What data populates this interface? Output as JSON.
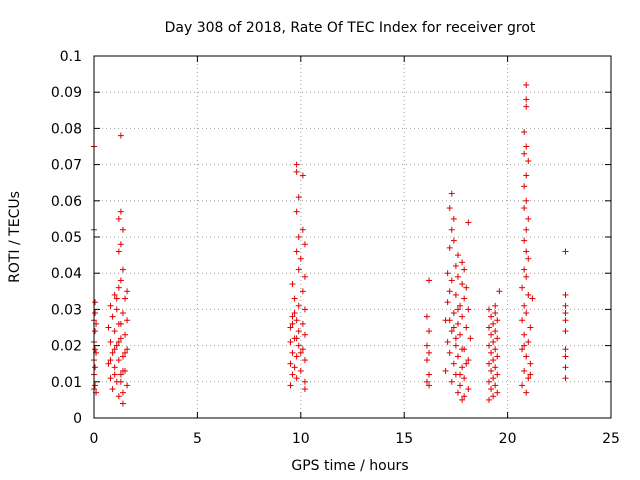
{
  "chart_data": {
    "type": "scatter",
    "title": "Day 308 of 2018, Rate Of TEC Index for receiver grot",
    "xlabel": "GPS time / hours",
    "ylabel": "ROTI / TECUs",
    "xlim": [
      0,
      25
    ],
    "ylim": [
      0,
      0.1
    ],
    "xticks": [
      "0",
      "5",
      "10",
      "15",
      "20",
      "25"
    ],
    "yticks": [
      "0",
      "0.01",
      "0.02",
      "0.03",
      "0.04",
      "0.05",
      "0.06",
      "0.07",
      "0.08",
      "0.09",
      "0.1"
    ],
    "grid": true,
    "marker": "+",
    "color": "#e00000",
    "points": [
      [
        0.0,
        0.075
      ],
      [
        0.0,
        0.052
      ],
      [
        0.05,
        0.032
      ],
      [
        0.05,
        0.029
      ],
      [
        0.0,
        0.027
      ],
      [
        0.05,
        0.024
      ],
      [
        0.0,
        0.021
      ],
      [
        0.05,
        0.019
      ],
      [
        0.0,
        0.016
      ],
      [
        0.05,
        0.014
      ],
      [
        0.0,
        0.012
      ],
      [
        0.05,
        0.009
      ],
      [
        0.0,
        0.008
      ],
      [
        0.1,
        0.007
      ],
      [
        0.1,
        0.018
      ],
      [
        0.1,
        0.026
      ],
      [
        1.3,
        0.078
      ],
      [
        1.3,
        0.057
      ],
      [
        1.2,
        0.055
      ],
      [
        1.4,
        0.052
      ],
      [
        1.3,
        0.048
      ],
      [
        1.2,
        0.046
      ],
      [
        1.4,
        0.041
      ],
      [
        1.3,
        0.038
      ],
      [
        1.2,
        0.036
      ],
      [
        1.0,
        0.034
      ],
      [
        1.5,
        0.033
      ],
      [
        0.8,
        0.031
      ],
      [
        1.1,
        0.03
      ],
      [
        1.4,
        0.029
      ],
      [
        0.9,
        0.028
      ],
      [
        1.6,
        0.027
      ],
      [
        1.2,
        0.026
      ],
      [
        0.7,
        0.025
      ],
      [
        1.0,
        0.024
      ],
      [
        1.5,
        0.023
      ],
      [
        1.3,
        0.022
      ],
      [
        0.8,
        0.021
      ],
      [
        1.1,
        0.02
      ],
      [
        1.6,
        0.019
      ],
      [
        0.9,
        0.018
      ],
      [
        1.4,
        0.017
      ],
      [
        1.2,
        0.016
      ],
      [
        0.7,
        0.015
      ],
      [
        1.0,
        0.014
      ],
      [
        1.5,
        0.013
      ],
      [
        1.3,
        0.012
      ],
      [
        0.8,
        0.011
      ],
      [
        1.1,
        0.01
      ],
      [
        1.6,
        0.009
      ],
      [
        0.9,
        0.008
      ],
      [
        1.4,
        0.007
      ],
      [
        1.2,
        0.006
      ],
      [
        1.4,
        0.004
      ],
      [
        1.0,
        0.012
      ],
      [
        1.5,
        0.018
      ],
      [
        1.2,
        0.021
      ],
      [
        0.8,
        0.016
      ],
      [
        1.3,
        0.026
      ],
      [
        1.1,
        0.033
      ],
      [
        1.6,
        0.035
      ],
      [
        1.4,
        0.013
      ],
      [
        1.0,
        0.019
      ],
      [
        1.3,
        0.01
      ],
      [
        9.8,
        0.07
      ],
      [
        9.8,
        0.068
      ],
      [
        10.1,
        0.067
      ],
      [
        9.9,
        0.061
      ],
      [
        9.8,
        0.057
      ],
      [
        10.1,
        0.052
      ],
      [
        9.9,
        0.05
      ],
      [
        10.2,
        0.048
      ],
      [
        9.8,
        0.046
      ],
      [
        10.0,
        0.044
      ],
      [
        9.9,
        0.041
      ],
      [
        10.2,
        0.039
      ],
      [
        9.6,
        0.037
      ],
      [
        10.1,
        0.035
      ],
      [
        9.7,
        0.033
      ],
      [
        9.9,
        0.031
      ],
      [
        10.2,
        0.03
      ],
      [
        9.6,
        0.028
      ],
      [
        9.8,
        0.027
      ],
      [
        10.1,
        0.026
      ],
      [
        9.5,
        0.025
      ],
      [
        9.9,
        0.024
      ],
      [
        10.2,
        0.023
      ],
      [
        9.7,
        0.022
      ],
      [
        9.5,
        0.021
      ],
      [
        9.9,
        0.02
      ],
      [
        10.1,
        0.019
      ],
      [
        9.6,
        0.018
      ],
      [
        9.8,
        0.017
      ],
      [
        10.2,
        0.016
      ],
      [
        9.5,
        0.015
      ],
      [
        9.7,
        0.014
      ],
      [
        10.0,
        0.013
      ],
      [
        9.6,
        0.012
      ],
      [
        9.8,
        0.011
      ],
      [
        10.2,
        0.01
      ],
      [
        9.5,
        0.009
      ],
      [
        10.2,
        0.008
      ],
      [
        9.8,
        0.022
      ],
      [
        9.6,
        0.026
      ],
      [
        10.0,
        0.018
      ],
      [
        9.7,
        0.029
      ],
      [
        16.2,
        0.038
      ],
      [
        16.1,
        0.028
      ],
      [
        16.2,
        0.024
      ],
      [
        16.1,
        0.02
      ],
      [
        16.2,
        0.018
      ],
      [
        16.1,
        0.016
      ],
      [
        16.2,
        0.012
      ],
      [
        16.1,
        0.01
      ],
      [
        16.2,
        0.009
      ],
      [
        17.3,
        0.062
      ],
      [
        17.2,
        0.058
      ],
      [
        17.4,
        0.055
      ],
      [
        18.1,
        0.054
      ],
      [
        17.3,
        0.052
      ],
      [
        17.4,
        0.049
      ],
      [
        17.2,
        0.047
      ],
      [
        17.6,
        0.045
      ],
      [
        17.8,
        0.043
      ],
      [
        17.5,
        0.042
      ],
      [
        17.9,
        0.041
      ],
      [
        17.1,
        0.04
      ],
      [
        17.6,
        0.039
      ],
      [
        17.3,
        0.038
      ],
      [
        17.8,
        0.037
      ],
      [
        18.0,
        0.036
      ],
      [
        17.2,
        0.035
      ],
      [
        17.5,
        0.034
      ],
      [
        17.9,
        0.033
      ],
      [
        17.1,
        0.032
      ],
      [
        17.7,
        0.031
      ],
      [
        18.1,
        0.03
      ],
      [
        17.4,
        0.029
      ],
      [
        17.8,
        0.028
      ],
      [
        17.0,
        0.027
      ],
      [
        17.6,
        0.026
      ],
      [
        18.0,
        0.025
      ],
      [
        17.3,
        0.024
      ],
      [
        17.7,
        0.023
      ],
      [
        18.2,
        0.022
      ],
      [
        17.1,
        0.021
      ],
      [
        17.5,
        0.02
      ],
      [
        17.9,
        0.019
      ],
      [
        17.2,
        0.018
      ],
      [
        17.6,
        0.017
      ],
      [
        18.1,
        0.016
      ],
      [
        17.4,
        0.015
      ],
      [
        17.8,
        0.014
      ],
      [
        17.0,
        0.013
      ],
      [
        17.5,
        0.012
      ],
      [
        17.9,
        0.011
      ],
      [
        17.3,
        0.01
      ],
      [
        17.7,
        0.009
      ],
      [
        18.1,
        0.008
      ],
      [
        17.6,
        0.007
      ],
      [
        17.9,
        0.006
      ],
      [
        17.8,
        0.005
      ],
      [
        17.5,
        0.022
      ],
      [
        17.8,
        0.019
      ],
      [
        17.6,
        0.03
      ],
      [
        17.4,
        0.025
      ],
      [
        18.0,
        0.015
      ],
      [
        17.7,
        0.012
      ],
      [
        17.2,
        0.027
      ],
      [
        19.1,
        0.03
      ],
      [
        19.4,
        0.029
      ],
      [
        19.2,
        0.028
      ],
      [
        19.5,
        0.027
      ],
      [
        19.3,
        0.026
      ],
      [
        19.1,
        0.025
      ],
      [
        19.4,
        0.024
      ],
      [
        19.2,
        0.023
      ],
      [
        19.5,
        0.022
      ],
      [
        19.3,
        0.021
      ],
      [
        19.1,
        0.02
      ],
      [
        19.4,
        0.019
      ],
      [
        19.2,
        0.018
      ],
      [
        19.5,
        0.017
      ],
      [
        19.3,
        0.016
      ],
      [
        19.1,
        0.015
      ],
      [
        19.4,
        0.014
      ],
      [
        19.2,
        0.013
      ],
      [
        19.5,
        0.012
      ],
      [
        19.3,
        0.011
      ],
      [
        19.1,
        0.01
      ],
      [
        19.4,
        0.009
      ],
      [
        19.2,
        0.008
      ],
      [
        19.5,
        0.007
      ],
      [
        19.3,
        0.006
      ],
      [
        19.1,
        0.005
      ],
      [
        19.6,
        0.035
      ],
      [
        19.4,
        0.031
      ],
      [
        20.9,
        0.092
      ],
      [
        20.9,
        0.088
      ],
      [
        20.9,
        0.086
      ],
      [
        20.8,
        0.079
      ],
      [
        20.9,
        0.075
      ],
      [
        20.8,
        0.073
      ],
      [
        21.0,
        0.071
      ],
      [
        20.9,
        0.067
      ],
      [
        20.8,
        0.064
      ],
      [
        20.9,
        0.06
      ],
      [
        20.8,
        0.058
      ],
      [
        21.0,
        0.055
      ],
      [
        20.9,
        0.052
      ],
      [
        20.8,
        0.049
      ],
      [
        20.9,
        0.046
      ],
      [
        21.0,
        0.044
      ],
      [
        20.8,
        0.041
      ],
      [
        20.9,
        0.039
      ],
      [
        20.7,
        0.036
      ],
      [
        21.0,
        0.034
      ],
      [
        21.2,
        0.033
      ],
      [
        20.8,
        0.031
      ],
      [
        20.9,
        0.029
      ],
      [
        20.7,
        0.027
      ],
      [
        21.1,
        0.025
      ],
      [
        20.8,
        0.023
      ],
      [
        21.0,
        0.021
      ],
      [
        20.7,
        0.019
      ],
      [
        20.9,
        0.017
      ],
      [
        21.1,
        0.015
      ],
      [
        20.8,
        0.013
      ],
      [
        21.0,
        0.011
      ],
      [
        20.7,
        0.009
      ],
      [
        20.9,
        0.007
      ],
      [
        21.1,
        0.012
      ],
      [
        20.8,
        0.02
      ],
      [
        22.8,
        0.046
      ],
      [
        22.8,
        0.034
      ],
      [
        22.8,
        0.031
      ],
      [
        22.8,
        0.029
      ],
      [
        22.8,
        0.027
      ],
      [
        22.8,
        0.024
      ],
      [
        22.8,
        0.019
      ],
      [
        22.8,
        0.017
      ],
      [
        22.8,
        0.014
      ],
      [
        22.8,
        0.011
      ]
    ]
  }
}
